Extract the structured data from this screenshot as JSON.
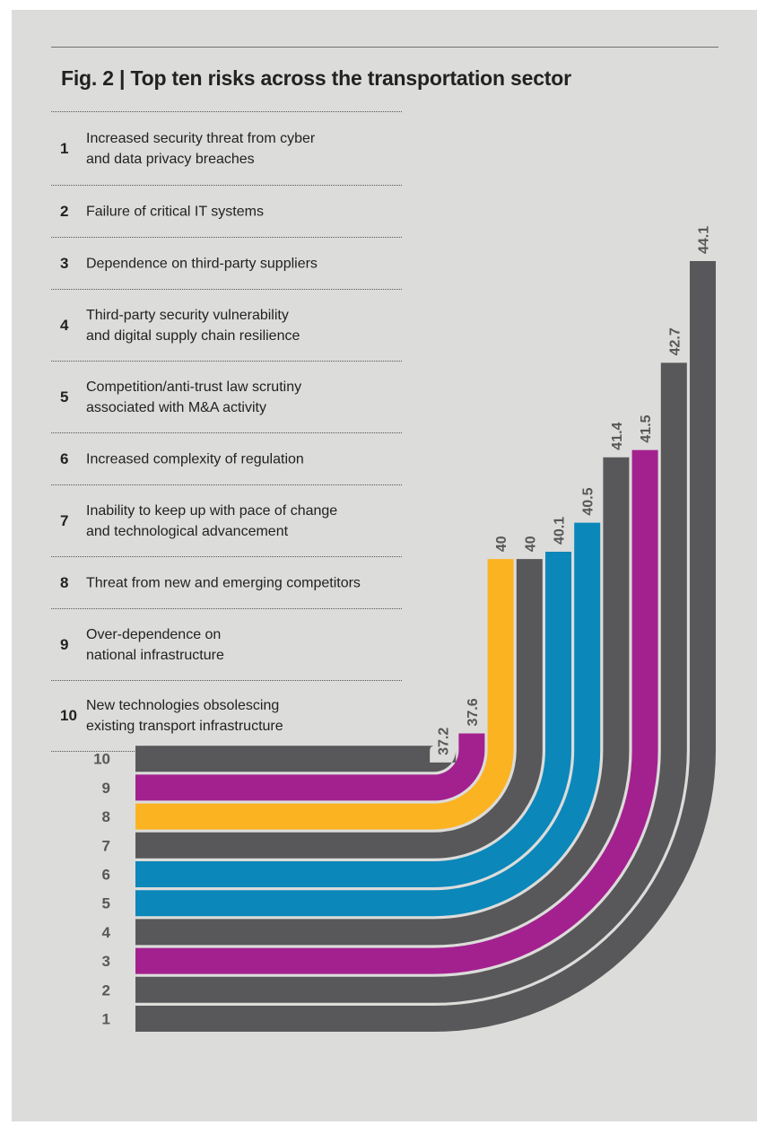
{
  "title": "Fig. 2  |  Top ten risks across the transportation sector",
  "risks": [
    {
      "rank": "1",
      "lines": [
        "Increased security threat from cyber",
        "and data privacy breaches"
      ]
    },
    {
      "rank": "2",
      "lines": [
        "Failure of critical IT systems"
      ]
    },
    {
      "rank": "3",
      "lines": [
        "Dependence on third-party suppliers"
      ]
    },
    {
      "rank": "4",
      "lines": [
        "Third-party security vulnerability",
        "and digital supply chain resilience"
      ]
    },
    {
      "rank": "5",
      "lines": [
        "Competition/anti-trust law scrutiny",
        "associated with M&A activity"
      ]
    },
    {
      "rank": "6",
      "lines": [
        "Increased complexity of regulation"
      ]
    },
    {
      "rank": "7",
      "lines": [
        "Inability to keep up with pace of change",
        "and technological advancement"
      ]
    },
    {
      "rank": "8",
      "lines": [
        "Threat from new and emerging competitors"
      ]
    },
    {
      "rank": "9",
      "lines": [
        "Over-dependence on",
        "national infrastructure"
      ]
    },
    {
      "rank": "10",
      "lines": [
        "New technologies obsolescing",
        "existing transport infrastructure"
      ]
    }
  ],
  "colors": {
    "gray": "#58585a",
    "magenta": "#a3218e",
    "yellow": "#fbb322",
    "blue": "#0b87ba",
    "background": "#dcdcda",
    "text": "#222222",
    "rank_label": "#58585a"
  },
  "chart_data": {
    "type": "bar",
    "categories": [
      "1",
      "2",
      "3",
      "4",
      "5",
      "6",
      "7",
      "8",
      "9",
      "10"
    ],
    "values": [
      44.1,
      42.7,
      41.5,
      41.4,
      40.5,
      40.1,
      40,
      40,
      37.6,
      37.2
    ],
    "value_labels": [
      "44.1",
      "42.7",
      "41.5",
      "41.4",
      "40.5",
      "40.1",
      "40",
      "40",
      "37.6",
      "37.2"
    ],
    "bar_colors": [
      "gray",
      "gray",
      "magenta",
      "gray",
      "blue",
      "blue",
      "gray",
      "yellow",
      "magenta",
      "gray"
    ],
    "orientation": "curved (bars bend from horizontal at left to vertical at right)",
    "legend": "none",
    "grid": false
  }
}
